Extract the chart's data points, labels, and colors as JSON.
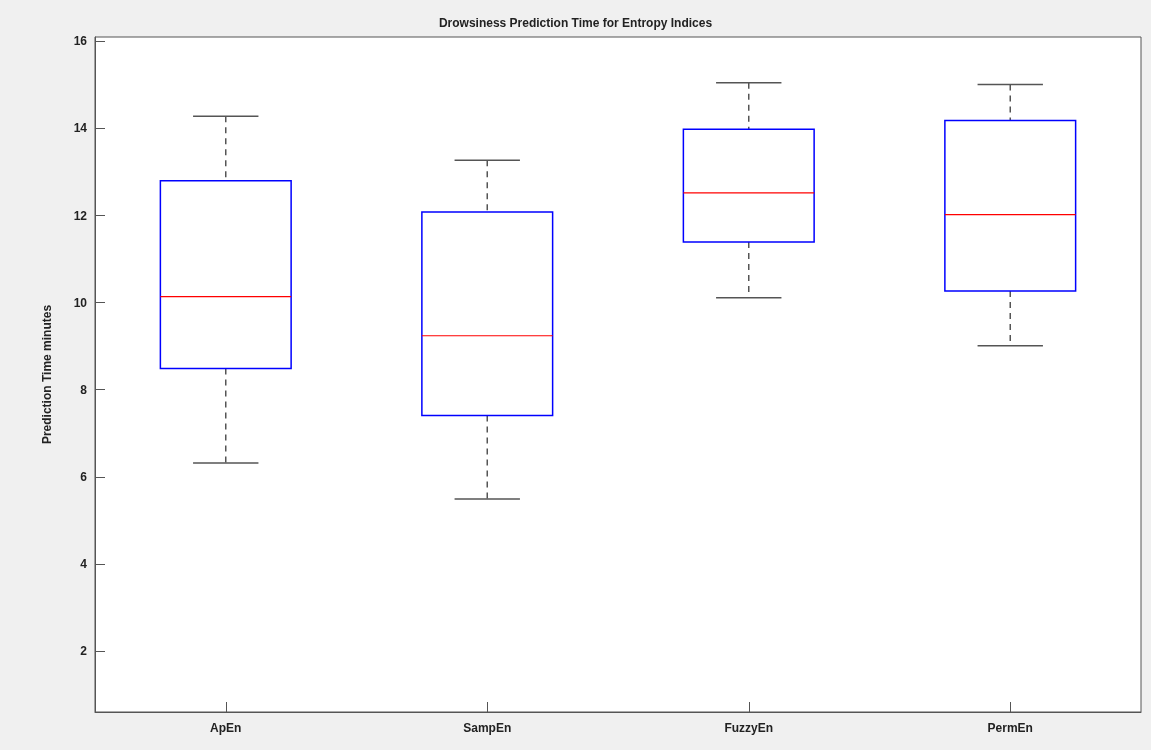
{
  "chart_data": {
    "type": "box",
    "title": "Drowsiness Prediction Time for Entropy Indices",
    "ylabel": "Prediction Time minutes",
    "categories": [
      "ApEn",
      "SampEn",
      "FuzzyEn",
      "PermEn"
    ],
    "color": "#0000ff",
    "boxes": [
      {
        "low": 6.32,
        "q1": 8.49,
        "median": 10.14,
        "q3": 12.8,
        "high": 14.28
      },
      {
        "low": 5.49,
        "q1": 7.41,
        "median": 9.24,
        "q3": 12.08,
        "high": 13.27
      },
      {
        "low": 10.11,
        "q1": 11.39,
        "median": 12.52,
        "q3": 13.98,
        "high": 15.05
      },
      {
        "low": 9.01,
        "q1": 10.27,
        "median": 12.02,
        "q3": 14.18,
        "high": 15.01
      }
    ],
    "ylim": [
      0.6,
      16.1
    ],
    "yticks": [
      2,
      4,
      6,
      8,
      10,
      12,
      14,
      16
    ],
    "grid": false
  }
}
